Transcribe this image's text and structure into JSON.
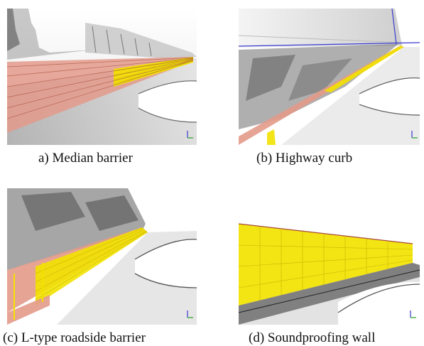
{
  "figures": [
    {
      "id": "a",
      "caption": "a) Median barrier",
      "scene": "median-barrier"
    },
    {
      "id": "b",
      "caption": "(b) Highway curb",
      "scene": "highway-curb"
    },
    {
      "id": "c",
      "caption": "(c) L-type roadside barrier",
      "scene": "l-type-roadside-barrier"
    },
    {
      "id": "d",
      "caption": "(d) Soundproofing wall",
      "scene": "soundproofing-wall"
    }
  ],
  "colors": {
    "highlight_yellow": "#f2e200",
    "highlight_salmon": "#e39a8a",
    "point_cloud_dark": "#444444",
    "axis_blue": "#3a3ad0"
  }
}
